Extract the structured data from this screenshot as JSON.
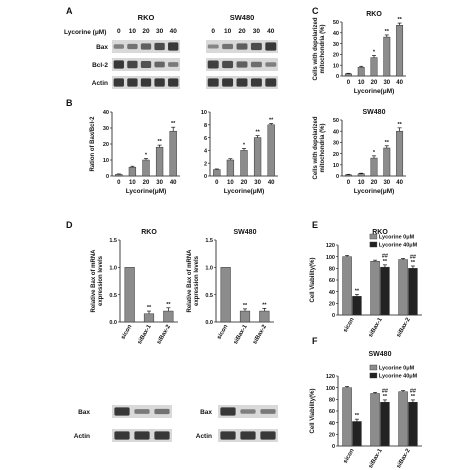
{
  "colors": {
    "bar_gray": "#8c8c8c",
    "bar_dark": "#222222",
    "bar_white": "#ffffff",
    "axis": "#111111",
    "blot_bg": "#d9d9d9",
    "band": "#2b2b2b"
  },
  "panel_letters": [
    "A",
    "B",
    "C",
    "D",
    "E",
    "F"
  ],
  "panel_a": {
    "header_label": "Lycorine (μM)",
    "doses": [
      "0",
      "10",
      "20",
      "30",
      "40"
    ],
    "blots": [
      {
        "cell": "RKO",
        "rows": [
          "Bax",
          "Bcl-2",
          "Actin"
        ],
        "intensity": [
          [
            0.35,
            0.45,
            0.6,
            0.75,
            0.9
          ],
          [
            0.9,
            0.8,
            0.7,
            0.55,
            0.4
          ],
          [
            0.9,
            0.9,
            0.9,
            0.9,
            0.9
          ]
        ]
      },
      {
        "cell": "SW480",
        "rows": [],
        "intensity": [
          [
            0.3,
            0.45,
            0.6,
            0.75,
            0.9
          ],
          [
            0.85,
            0.75,
            0.6,
            0.5,
            0.35
          ],
          [
            0.9,
            0.9,
            0.9,
            0.9,
            0.9
          ]
        ]
      }
    ]
  },
  "panel_d": {
    "blots": [
      {
        "cell": "RKO",
        "rows": [
          "Bax",
          "Actin"
        ],
        "intensity": [
          [
            0.9,
            0.4,
            0.45
          ],
          [
            0.9,
            0.9,
            0.9
          ]
        ]
      },
      {
        "cell": "SW480",
        "rows": [
          "Bax",
          "Actin"
        ],
        "intensity": [
          [
            0.9,
            0.35,
            0.4
          ],
          [
            0.9,
            0.9,
            0.9
          ]
        ]
      }
    ]
  },
  "chart_data": [
    {
      "id": "B-RKO",
      "type": "bar",
      "xlabel": "Lycorine(μM)",
      "ylabel": "Ration of Bax/Bcl-2",
      "categories": [
        "0",
        "10",
        "20",
        "30",
        "40"
      ],
      "values": [
        1,
        5.5,
        10,
        18,
        28
      ],
      "errors": [
        0.3,
        0.6,
        0.9,
        1.3,
        2.5
      ],
      "annotations": [
        "",
        "",
        "*",
        "**",
        "**"
      ],
      "ylim": [
        0,
        40
      ],
      "yticks": [
        0,
        10,
        20,
        30,
        40
      ]
    },
    {
      "id": "B-SW480",
      "type": "bar",
      "xlabel": "Lycorine(μM)",
      "ylabel": "",
      "categories": [
        "0",
        "10",
        "20",
        "30",
        "40"
      ],
      "values": [
        1,
        2.5,
        4,
        6,
        8
      ],
      "errors": [
        0.1,
        0.2,
        0.3,
        0.3,
        0.2
      ],
      "annotations": [
        "",
        "",
        "*",
        "**",
        "**"
      ],
      "ylim": [
        0,
        10
      ],
      "yticks": [
        0,
        2,
        4,
        6,
        8,
        10
      ]
    },
    {
      "id": "C-RKO",
      "type": "bar",
      "title": "RKO",
      "xlabel": "Lycorine(μM)",
      "ylabel": "Cells with depolarized mitochondria (%)",
      "categories": [
        "0",
        "10",
        "20",
        "30",
        "40"
      ],
      "values": [
        2,
        8,
        17,
        36,
        47
      ],
      "errors": [
        0.5,
        1,
        2,
        2,
        2
      ],
      "annotations": [
        "",
        "",
        "*",
        "**",
        "**"
      ],
      "ylim": [
        0,
        50
      ],
      "yticks": [
        0,
        10,
        20,
        30,
        40,
        50
      ]
    },
    {
      "id": "C-SW480",
      "type": "bar",
      "title": "SW480",
      "xlabel": "Lycorine(μM)",
      "ylabel": "Cells with depolarized mitochondria (%)",
      "categories": [
        "0",
        "10",
        "20",
        "30",
        "40"
      ],
      "values": [
        1,
        2,
        16,
        25,
        40
      ],
      "errors": [
        0.5,
        0.5,
        2,
        2,
        3
      ],
      "annotations": [
        "",
        "",
        "*",
        "**",
        "**"
      ],
      "ylim": [
        0,
        50
      ],
      "yticks": [
        0,
        10,
        20,
        30,
        40,
        50
      ]
    },
    {
      "id": "D-RKO",
      "type": "bar",
      "title": "RKO",
      "ylabel": "Relative Bax of mRNA expression levels",
      "categories": [
        "sicon",
        "siBax-1",
        "siBax-2"
      ],
      "values": [
        1.0,
        0.15,
        0.2
      ],
      "errors": [
        0,
        0.05,
        0.06
      ],
      "annotations": [
        "",
        "**",
        "**"
      ],
      "ylim": [
        0,
        1.5
      ],
      "yticks": [
        0.0,
        0.5,
        1.0,
        1.5
      ]
    },
    {
      "id": "D-SW480",
      "type": "bar",
      "title": "SW480",
      "ylabel": "Relative Bax of mRNA expression levels",
      "categories": [
        "sicon",
        "siBax-1",
        "siBax-2"
      ],
      "values": [
        1.0,
        0.2,
        0.2
      ],
      "errors": [
        0,
        0.04,
        0.05
      ],
      "annotations": [
        "",
        "**",
        "**"
      ],
      "ylim": [
        0,
        1.5
      ],
      "yticks": [
        0.0,
        0.5,
        1.0,
        1.5
      ]
    },
    {
      "id": "E",
      "type": "bar",
      "title": "RKO",
      "ylabel": "Cell Viability(%)",
      "categories": [
        "sicon",
        "siBax-1",
        "siBax-2"
      ],
      "legend": "top-right",
      "series": [
        {
          "name": "Lycorine 0μM",
          "values": [
            100,
            92,
            95
          ],
          "errors": [
            2,
            2,
            2
          ],
          "annotations": [
            "",
            "",
            ""
          ]
        },
        {
          "name": "Lycorine 40μM",
          "values": [
            32,
            82,
            80
          ],
          "errors": [
            3,
            4,
            4
          ],
          "annotations": [
            "**",
            "##\n**",
            "##\n**"
          ]
        }
      ],
      "ylim": [
        0,
        120
      ],
      "yticks": [
        0,
        20,
        40,
        60,
        80,
        100,
        120
      ]
    },
    {
      "id": "F",
      "type": "bar",
      "title": "SW480",
      "ylabel": "Cell Viability(%)",
      "categories": [
        "sicon",
        "siBax-1",
        "siBax-2"
      ],
      "legend": "top-right",
      "series": [
        {
          "name": "Lycorine 0μM",
          "values": [
            100,
            90,
            93
          ],
          "errors": [
            2,
            2,
            2
          ],
          "annotations": [
            "",
            "",
            ""
          ]
        },
        {
          "name": "Lycorine 40μM",
          "values": [
            42,
            75,
            75
          ],
          "errors": [
            4,
            4,
            4
          ],
          "annotations": [
            "**",
            "##\n**",
            "##\n**"
          ]
        }
      ],
      "ylim": [
        0,
        120
      ],
      "yticks": [
        0,
        20,
        40,
        60,
        80,
        100,
        120
      ]
    }
  ]
}
